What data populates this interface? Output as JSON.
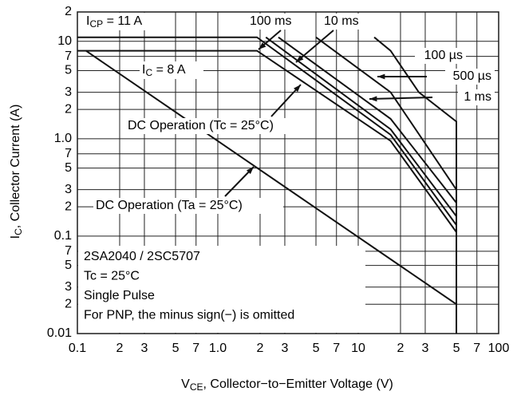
{
  "chart_data": {
    "type": "line",
    "x_label": {
      "main": "V",
      "sub": "CE",
      "rest": ", Collector−to−Emitter Voltage (V)"
    },
    "y_label": {
      "main": "I",
      "sub": "C",
      "rest": ", Collector Current (A)"
    },
    "xscale": "log",
    "yscale": "log",
    "grid": true,
    "color": "#111111",
    "xlim": [
      0.1,
      100
    ],
    "ylim": [
      0.01,
      20
    ],
    "xticks": [
      {
        "value": 0.1,
        "label": "0.1"
      },
      {
        "value": 0.2,
        "label": "2"
      },
      {
        "value": 0.3,
        "label": "3"
      },
      {
        "value": 0.5,
        "label": "5"
      },
      {
        "value": 0.7,
        "label": "7"
      },
      {
        "value": 1,
        "label": "1.0"
      },
      {
        "value": 2,
        "label": "2"
      },
      {
        "value": 3,
        "label": "3"
      },
      {
        "value": 5,
        "label": "5"
      },
      {
        "value": 7,
        "label": "7"
      },
      10,
      {
        "value": 20,
        "label": "2"
      },
      {
        "value": 30,
        "label": "3"
      },
      {
        "value": 50,
        "label": "5"
      },
      {
        "value": 70,
        "label": "7"
      },
      100
    ],
    "yticks": [
      0.01,
      {
        "value": 0.02,
        "label": "2"
      },
      {
        "value": 0.03,
        "label": "3"
      },
      {
        "value": 0.05,
        "label": "5"
      },
      {
        "value": 0.07,
        "label": "7"
      },
      0.1,
      {
        "value": 0.2,
        "label": "2"
      },
      {
        "value": 0.3,
        "label": "3"
      },
      {
        "value": 0.5,
        "label": "5"
      },
      {
        "value": 0.7,
        "label": "7"
      },
      {
        "value": 1,
        "label": "1.0"
      },
      {
        "value": 2,
        "label": "2"
      },
      {
        "value": 3,
        "label": "3"
      },
      {
        "value": 5,
        "label": "5"
      },
      {
        "value": 7,
        "label": "7"
      },
      10,
      {
        "value": 20,
        "label": "2"
      }
    ],
    "series": [
      {
        "name": "DC Operation (Ta = 25°C)",
        "x": [
          0.115,
          50
        ],
        "values": [
          8,
          0.02
        ]
      },
      {
        "name": "DC Operation (Tc = 25°C)",
        "x": [
          0.1,
          1.9,
          17,
          50
        ],
        "values": [
          8,
          8,
          0.95,
          0.11
        ]
      },
      {
        "name": "100 ms",
        "x": [
          0.1,
          1.9,
          17,
          50
        ],
        "values": [
          11,
          11,
          1.1,
          0.13
        ]
      },
      {
        "name": "10 ms",
        "x": [
          2.2,
          17,
          50
        ],
        "values": [
          11,
          1.25,
          0.16
        ]
      },
      {
        "name": "1 ms",
        "x": [
          2.7,
          17,
          50
        ],
        "values": [
          11,
          1.6,
          0.22
        ]
      },
      {
        "name": "500 µs",
        "x": [
          5,
          17,
          50
        ],
        "values": [
          11,
          3,
          0.3
        ]
      },
      {
        "name": "100 µs",
        "x": [
          13,
          17,
          27,
          50,
          50
        ],
        "values": [
          11,
          8,
          3,
          1.5,
          0.01
        ]
      }
    ],
    "annotations": [
      {
        "main": "I",
        "sub": "CP",
        "rest": " = 11 A"
      },
      {
        "main": "I",
        "sub": "C",
        "rest": " = 8 A"
      }
    ],
    "notes": [
      "2SA2040 / 2SC5707",
      "Tc = 25°C",
      "Single Pulse",
      "For PNP, the minus sign(−) is omitted"
    ]
  }
}
